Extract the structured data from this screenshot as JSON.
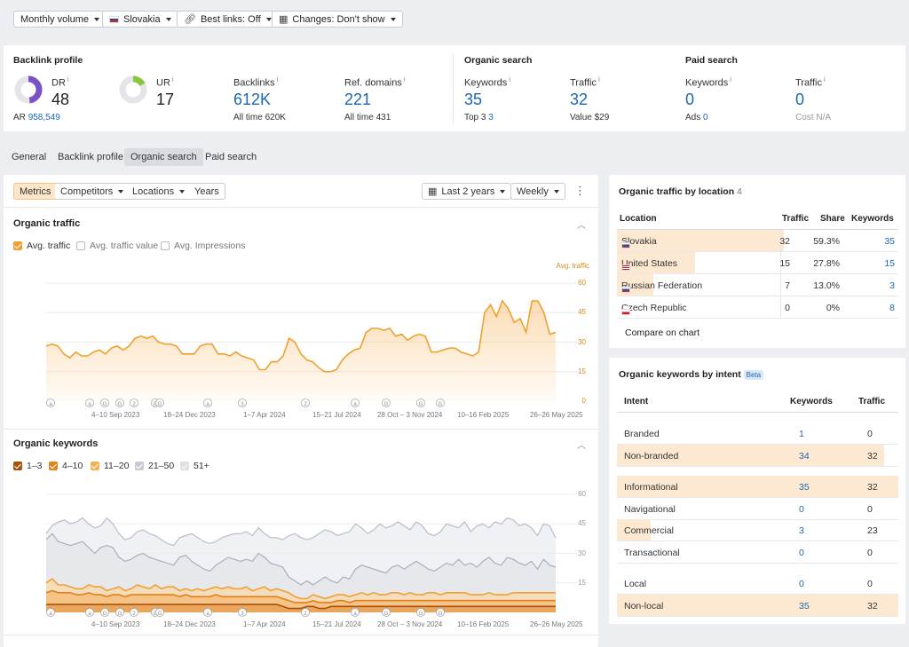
{
  "filters": {
    "volume": "Monthly volume",
    "country": "Slovakia",
    "best_links": "Best links: Off",
    "changes": "Changes: Don't show"
  },
  "overview": {
    "backlink_profile": {
      "title": "Backlink profile",
      "dr_label": "DR",
      "dr_value": "48",
      "ar_label": "AR",
      "ar_value": "958,549",
      "ur_label": "UR",
      "ur_value": "17",
      "backlinks_label": "Backlinks",
      "backlinks_value": "612K",
      "backlinks_sub_label": "All time",
      "backlinks_sub_value": "620K",
      "refdomains_label": "Ref. domains",
      "refdomains_value": "221",
      "refdomains_sub_label": "All time",
      "refdomains_sub_value": "431",
      "dr_fraction": 0.48,
      "ur_fraction": 0.17
    },
    "organic_search": {
      "title": "Organic search",
      "keywords_label": "Keywords",
      "keywords_value": "35",
      "top3_label": "Top 3",
      "top3_value": "3",
      "traffic_label": "Traffic",
      "traffic_value": "32",
      "value_label": "Value",
      "value_value": "$29"
    },
    "paid_search": {
      "title": "Paid search",
      "keywords_label": "Keywords",
      "keywords_value": "0",
      "ads_label": "Ads",
      "ads_value": "0",
      "traffic_label": "Traffic",
      "traffic_value": "0",
      "cost_label": "Cost",
      "cost_value": "N/A"
    },
    "info_glyph": "i"
  },
  "tabs": [
    "General",
    "Backlink profile",
    "Organic search",
    "Paid search"
  ],
  "toolbar": {
    "metrics": "Metrics",
    "competitors": "Competitors",
    "locations": "Locations",
    "years": "Years",
    "range": "Last 2 years",
    "interval": "Weekly"
  },
  "organic_traffic": {
    "title": "Organic traffic",
    "checks": [
      "Avg. traffic",
      "Avg. traffic value",
      "Avg. Impressions"
    ],
    "axis_title": "Avg. traffic",
    "x_ticks": [
      "4–10 Sep 2023",
      "18–24 Dec 2023",
      "1–7 Apr 2024",
      "15–21 Jul 2024",
      "28 Oct – 3 Nov 2024",
      "10–16 Feb 2025",
      "26–26 May 2025"
    ],
    "y_ticks": [
      "60",
      "45",
      "30",
      "15",
      "0"
    ],
    "annotations": [
      "a",
      "a",
      "G",
      "G",
      "2",
      "G",
      "G",
      "a",
      "3",
      "2",
      "a",
      "G",
      "G",
      "G"
    ]
  },
  "organic_keywords": {
    "title": "Organic keywords",
    "legend": [
      "1–3",
      "4–10",
      "11–20",
      "21–50",
      "51+"
    ],
    "y_ticks": [
      "60",
      "45",
      "30",
      "15"
    ],
    "x_ticks": [
      "4–10 Sep 2023",
      "18–24 Dec 2023",
      "1–7 Apr 2024",
      "15–21 Jul 2024",
      "28 Oct – 3 Nov 2024",
      "10–16 Feb 2025",
      "26–26 May 2025"
    ]
  },
  "chart_data": [
    {
      "type": "area",
      "title": "Organic traffic",
      "ylabel": "Avg. traffic",
      "ylim": [
        0,
        60
      ],
      "series": [
        {
          "name": "Avg. traffic",
          "values": [
            28,
            29,
            28,
            24,
            22,
            25,
            23,
            23,
            25,
            26,
            24,
            27,
            28,
            26,
            28,
            32,
            33,
            32,
            33,
            30,
            29,
            29,
            28,
            24,
            24,
            24,
            28,
            29,
            29,
            24,
            24,
            23,
            25,
            23,
            22,
            21,
            16,
            16,
            20,
            20,
            23,
            32,
            30,
            24,
            21,
            20,
            17,
            15,
            15,
            16,
            21,
            24,
            26,
            27,
            35,
            37,
            37,
            36,
            37,
            33,
            34,
            31,
            33,
            34,
            33,
            25,
            25,
            26,
            27,
            27,
            25,
            24,
            23,
            25,
            45,
            49,
            43,
            51,
            47,
            40,
            42,
            35,
            51,
            51,
            45,
            34,
            35
          ]
        }
      ]
    },
    {
      "type": "area",
      "title": "Organic keywords",
      "ylim": [
        0,
        60
      ],
      "series": [
        {
          "name": "51+",
          "values": [
            40,
            44,
            46,
            47,
            45,
            46,
            48,
            45,
            43,
            44,
            48,
            45,
            40,
            37,
            38,
            41,
            42,
            40,
            39,
            37,
            35,
            34,
            38,
            39,
            40,
            38,
            36,
            35,
            36,
            38,
            39,
            40,
            40,
            41,
            39,
            43,
            40,
            38,
            38,
            37,
            39,
            40,
            38,
            37,
            38,
            40,
            42,
            41,
            39,
            40,
            41,
            45,
            43,
            40,
            42,
            45,
            43,
            44,
            46,
            44,
            42,
            46,
            44,
            40,
            39,
            41,
            45,
            44,
            43,
            46,
            41,
            44,
            45,
            43,
            46,
            45,
            48,
            47,
            44,
            45,
            43,
            39,
            45,
            44,
            38
          ]
        },
        {
          "name": "21–50",
          "values": [
            37,
            40,
            36,
            35,
            34,
            35,
            36,
            33,
            30,
            33,
            34,
            33,
            28,
            26,
            27,
            29,
            30,
            28,
            27,
            26,
            25,
            24,
            28,
            29,
            26,
            24,
            22,
            21,
            24,
            26,
            28,
            27,
            26,
            27,
            26,
            30,
            28,
            25,
            24,
            23,
            18,
            16,
            14,
            16,
            14,
            16,
            18,
            16,
            15,
            18,
            17,
            22,
            24,
            23,
            22,
            21,
            20,
            23,
            24,
            22,
            24,
            26,
            24,
            22,
            21,
            23,
            25,
            24,
            27,
            24,
            25,
            23,
            26,
            28,
            25,
            24,
            28,
            27,
            25,
            24,
            26,
            22,
            27,
            24,
            23
          ]
        },
        {
          "name": "11–20",
          "values": [
            15,
            17,
            14,
            14,
            13,
            12,
            12,
            14,
            13,
            13,
            11,
            12,
            13,
            11,
            12,
            14,
            13,
            12,
            14,
            12,
            13,
            13,
            11,
            12,
            11,
            12,
            11,
            12,
            13,
            12,
            13,
            12,
            12,
            13,
            11,
            12,
            13,
            11,
            12,
            11,
            10,
            8,
            7,
            7,
            9,
            8,
            7,
            8,
            9,
            9,
            8,
            9,
            10,
            9,
            10,
            9,
            9,
            10,
            10,
            9,
            10,
            9,
            9,
            10,
            10,
            9,
            10,
            10,
            10,
            10,
            9,
            9,
            9,
            10,
            9,
            9,
            9,
            10,
            10,
            10,
            10,
            10,
            10,
            10,
            10
          ]
        },
        {
          "name": "4–10",
          "values": [
            10,
            11,
            10,
            10,
            10,
            9,
            9,
            10,
            9,
            9,
            8,
            9,
            9,
            8,
            9,
            9,
            9,
            9,
            9,
            9,
            9,
            9,
            8,
            9,
            8,
            8,
            8,
            8,
            9,
            8,
            8,
            8,
            8,
            8,
            8,
            8,
            8,
            8,
            8,
            7,
            6,
            5,
            5,
            5,
            6,
            5,
            5,
            5,
            6,
            6,
            5,
            6,
            6,
            6,
            6,
            6,
            6,
            6,
            6,
            6,
            6,
            6,
            6,
            6,
            6,
            6,
            6,
            6,
            6,
            6,
            6,
            6,
            6,
            6,
            6,
            6,
            6,
            6,
            6,
            6,
            6,
            6,
            6,
            6,
            6
          ]
        },
        {
          "name": "1–3",
          "values": [
            4,
            4,
            4,
            4,
            4,
            4,
            4,
            4,
            4,
            4,
            4,
            4,
            4,
            4,
            4,
            4,
            4,
            4,
            4,
            4,
            4,
            4,
            4,
            4,
            4,
            4,
            4,
            4,
            4,
            4,
            4,
            4,
            4,
            4,
            4,
            4,
            4,
            4,
            4,
            3,
            2,
            2,
            2,
            3,
            3,
            2,
            2,
            3,
            3,
            3,
            3,
            3,
            3,
            3,
            3,
            3,
            3,
            3,
            3,
            3,
            3,
            3,
            3,
            3,
            3,
            3,
            3,
            3,
            3,
            3,
            3,
            3,
            3,
            3,
            3,
            3,
            3,
            3,
            3,
            3,
            3,
            3,
            3,
            3,
            3
          ]
        }
      ]
    },
    {
      "type": "table",
      "title": "Organic traffic by location",
      "columns": [
        "Location",
        "Traffic",
        "Share",
        "Keywords"
      ],
      "rows": [
        [
          "Slovakia",
          "32",
          "59.3%",
          "35"
        ],
        [
          "United States",
          "15",
          "27.8%",
          "15"
        ],
        [
          "Russian Federation",
          "7",
          "13.0%",
          "3"
        ],
        [
          "Czech Republic",
          "0",
          "0%",
          "8"
        ]
      ]
    },
    {
      "type": "table",
      "title": "Organic keywords by intent",
      "columns": [
        "Intent",
        "Keywords",
        "Traffic"
      ],
      "rows": [
        [
          "Branded",
          "1",
          "0"
        ],
        [
          "Non-branded",
          "34",
          "32"
        ],
        [
          "Informational",
          "35",
          "32"
        ],
        [
          "Navigational",
          "0",
          "0"
        ],
        [
          "Commercial",
          "3",
          "23"
        ],
        [
          "Transactional",
          "0",
          "0"
        ],
        [
          "Local",
          "0",
          "0"
        ],
        [
          "Non-local",
          "35",
          "32"
        ]
      ]
    }
  ],
  "location_panel": {
    "title": "Organic traffic by location",
    "count": "4",
    "headers": {
      "location": "Location",
      "traffic": "Traffic",
      "share": "Share",
      "keywords": "Keywords"
    },
    "rows": [
      {
        "name": "Slovakia",
        "traffic": "32",
        "share": "59.3%",
        "keywords": "35",
        "share_fraction": 0.593
      },
      {
        "name": "United States",
        "traffic": "15",
        "share": "27.8%",
        "keywords": "15",
        "share_fraction": 0.278
      },
      {
        "name": "Russian Federation",
        "traffic": "7",
        "share": "13.0%",
        "keywords": "3",
        "share_fraction": 0.13
      },
      {
        "name": "Czech Republic",
        "traffic": "0",
        "share": "0%",
        "keywords": "8",
        "share_fraction": 0
      }
    ],
    "compare": "Compare on chart"
  },
  "intent_panel": {
    "title": "Organic keywords by intent",
    "badge": "Beta",
    "headers": {
      "intent": "Intent",
      "keywords": "Keywords",
      "traffic": "Traffic"
    },
    "rows": [
      {
        "name": "Branded",
        "keywords": "1",
        "traffic": "0"
      },
      {
        "name": "Non-branded",
        "keywords": "34",
        "traffic": "32"
      },
      {
        "name": "Informational",
        "keywords": "35",
        "traffic": "32"
      },
      {
        "name": "Navigational",
        "keywords": "0",
        "traffic": "0"
      },
      {
        "name": "Commercial",
        "keywords": "3",
        "traffic": "23"
      },
      {
        "name": "Transactional",
        "keywords": "0",
        "traffic": "0"
      },
      {
        "name": "Local",
        "keywords": "0",
        "traffic": "0"
      },
      {
        "name": "Non-local",
        "keywords": "35",
        "traffic": "32"
      }
    ]
  },
  "colors": {
    "accent_orange": "#f0a030",
    "link_blue": "#1b67b3",
    "dr_purple": "#7a52c7",
    "ur_green": "#8cc63f"
  }
}
